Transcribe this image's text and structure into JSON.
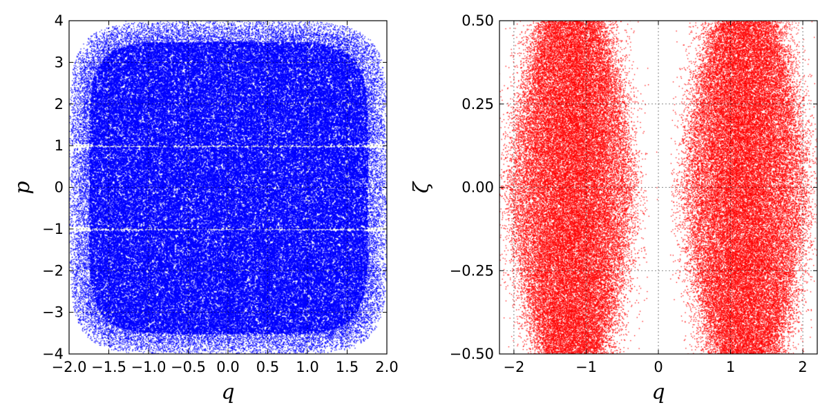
{
  "chart_data": [
    {
      "type": "scatter",
      "xlabel": "q",
      "ylabel": "p",
      "xlim": [
        -2.0,
        2.0
      ],
      "ylim": [
        -4,
        4
      ],
      "x_ticks": [
        -2.0,
        -1.5,
        -1.0,
        -0.5,
        0.0,
        0.5,
        1.0,
        1.5,
        2.0
      ],
      "x_tick_labels": [
        "−2.0",
        "−1.5",
        "−1.0",
        "−0.5",
        "0.0",
        "0.5",
        "1.0",
        "1.5",
        "2.0"
      ],
      "y_ticks": [
        -4,
        -3,
        -2,
        -1,
        0,
        1,
        2,
        3,
        4
      ],
      "y_tick_labels": [
        "−4",
        "−3",
        "−2",
        "−1",
        "0",
        "1",
        "2",
        "3",
        "4"
      ],
      "grid": true,
      "color": "#0000ff",
      "distribution": {
        "description": "dense uniform fill of rounded-square region",
        "thin_gaps_at_p": [
          -1,
          1
        ]
      }
    },
    {
      "type": "scatter",
      "xlabel": "q",
      "ylabel": "ζ",
      "xlim": [
        -2.2,
        2.2
      ],
      "ylim": [
        -0.5,
        0.5
      ],
      "x_ticks": [
        -2,
        -1,
        0,
        1,
        2
      ],
      "x_tick_labels": [
        "−2",
        "−1",
        "0",
        "1",
        "2"
      ],
      "y_ticks": [
        -0.5,
        -0.25,
        0.0,
        0.25,
        0.5
      ],
      "y_tick_labels": [
        "−0.50",
        "−0.25",
        "0.00",
        "0.25",
        "0.50"
      ],
      "grid": true,
      "color": "#ff0000",
      "distribution": {
        "lobe_centers_q": [
          -1.2,
          1.2
        ],
        "empty_band_near_q": 0
      }
    }
  ]
}
